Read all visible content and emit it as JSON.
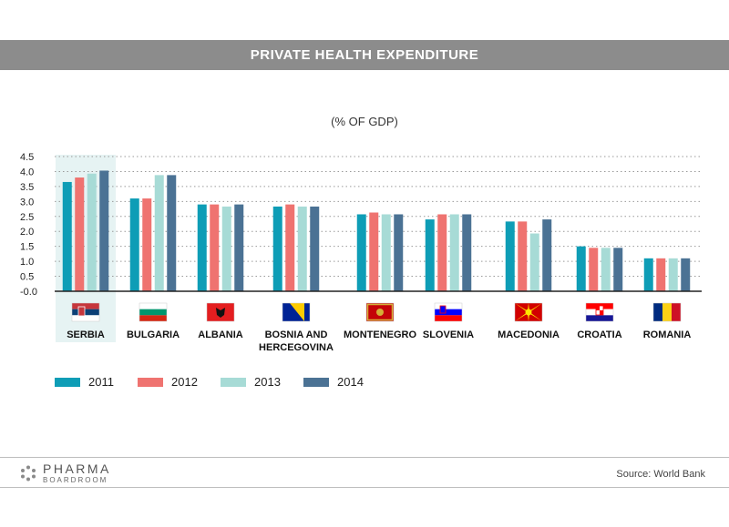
{
  "header": {
    "title": "PRIVATE HEALTH EXPENDITURE"
  },
  "chart_data": {
    "type": "bar",
    "title": "PRIVATE HEALTH EXPENDITURE",
    "subtitle": "(% OF GDP)",
    "ylim": [
      0,
      4.5
    ],
    "yticks": [
      "-0.0",
      "0.5",
      "1.0",
      "1.5",
      "2.0",
      "2.5",
      "3.0",
      "3.5",
      "4.0",
      "4.5"
    ],
    "grid": true,
    "legend_position": "bottom-left",
    "categories": [
      "SERBIA",
      "BULGARIA",
      "ALBANIA",
      "BOSNIA AND HERCEGOVINA",
      "MONTENEGRO",
      "SLOVENIA",
      "MACEDONIA",
      "CROATIA",
      "ROMANIA"
    ],
    "category_lines": [
      [
        "SERBIA"
      ],
      [
        "BULGARIA"
      ],
      [
        "ALBANIA"
      ],
      [
        "BOSNIA AND",
        "HERCEGOVINA"
      ],
      [
        "MONTENEGRO"
      ],
      [
        "SLOVENIA"
      ],
      [
        "MACEDONIA"
      ],
      [
        "CROATIA"
      ],
      [
        "ROMANIA"
      ]
    ],
    "highlighted_category": "SERBIA",
    "series": [
      {
        "name": "2011",
        "color": "#0e9db6",
        "values": [
          3.65,
          3.1,
          2.9,
          2.83,
          2.57,
          2.4,
          2.33,
          1.5,
          1.1
        ]
      },
      {
        "name": "2012",
        "color": "#ef7370",
        "values": [
          3.8,
          3.1,
          2.9,
          2.9,
          2.63,
          2.57,
          2.33,
          1.45,
          1.1
        ]
      },
      {
        "name": "2013",
        "color": "#a7dbd6",
        "values": [
          3.93,
          3.88,
          2.83,
          2.83,
          2.57,
          2.57,
          1.93,
          1.45,
          1.1
        ]
      },
      {
        "name": "2014",
        "color": "#4b7294",
        "values": [
          4.03,
          3.88,
          2.9,
          2.83,
          2.57,
          2.57,
          2.4,
          1.45,
          1.1
        ]
      }
    ]
  },
  "flags": [
    "serbia-flag-icon",
    "bulgaria-flag-icon",
    "albania-flag-icon",
    "bosnia-flag-icon",
    "montenegro-flag-icon",
    "slovenia-flag-icon",
    "macedonia-flag-icon",
    "croatia-flag-icon",
    "romania-flag-icon"
  ],
  "colors": {
    "title_bar": "#8c8c8c",
    "highlight": "#e6f3f3",
    "grid": "#9a9a9a"
  },
  "footer": {
    "brand_line1": "PHARMA",
    "brand_line2": "BOARDROOM",
    "source": "Source: World Bank"
  }
}
